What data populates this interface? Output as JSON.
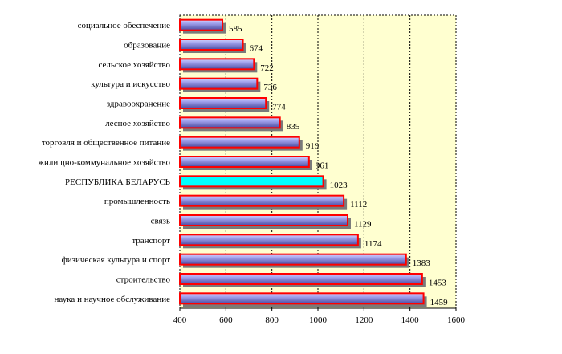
{
  "chart_data": {
    "type": "bar",
    "orientation": "horizontal",
    "categories": [
      "социальное обеспечение",
      "образование",
      "сельское хозяйство",
      "культура и искусство",
      "здравоохранение",
      "лесное хозяйство",
      "торговля и общественное питание",
      "жилищно-коммунальное хозяйство",
      "РЕСПУБЛИКА БЕЛАРУСЬ",
      "промышленность",
      "связь",
      "транспорт",
      "физическая культура и спорт",
      "строительство",
      "наука и научное обслуживание"
    ],
    "values": [
      585,
      674,
      722,
      736,
      774,
      835,
      919,
      961,
      1023,
      1112,
      1129,
      1174,
      1383,
      1453,
      1459
    ],
    "highlight_category": "РЕСПУБЛИКА БЕЛАРУСЬ",
    "xlim": [
      400,
      1600
    ],
    "xticks": [
      400,
      600,
      800,
      1000,
      1200,
      1400,
      1600
    ],
    "grid": true,
    "legend": "none",
    "colors": {
      "bar_fill_light": "#b8b8f4",
      "bar_fill_dark": "#5656b0",
      "bar_outline": "#ff0000",
      "highlight_fill": "#00ffff",
      "plot_background": "#ffffd0",
      "grid_line": "#000000"
    }
  }
}
